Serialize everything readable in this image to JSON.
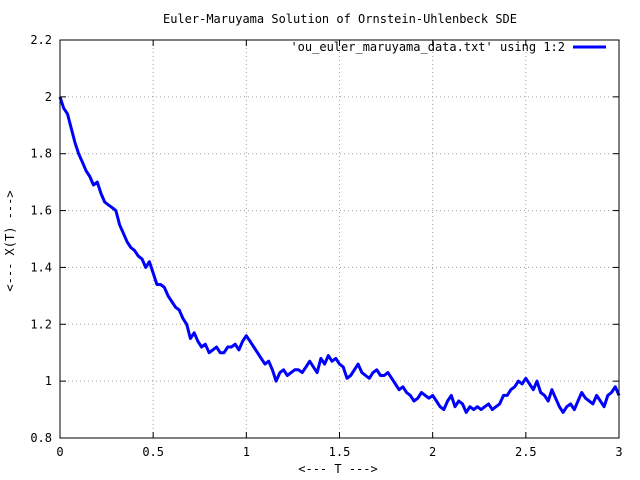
{
  "chart_data": {
    "type": "line",
    "title": "Euler-Maruyama Solution of Ornstein-Uhlenbeck SDE",
    "xlabel": "<--- T --->",
    "ylabel": "<--- X(T) --->",
    "xlim": [
      0,
      3
    ],
    "ylim": [
      0.8,
      2.2
    ],
    "xticks": [
      0,
      0.5,
      1,
      1.5,
      2,
      2.5,
      3
    ],
    "xtick_labels": [
      "0",
      "0.5",
      "1",
      "1.5",
      "2",
      "2.5",
      "3"
    ],
    "yticks": [
      0.8,
      1,
      1.2,
      1.4,
      1.6,
      1.8,
      2,
      2.2
    ],
    "ytick_labels": [
      "0.8",
      "1",
      "1.2",
      "1.4",
      "1.6",
      "1.8",
      "2",
      "2.2"
    ],
    "grid": true,
    "legend_position": "top-right",
    "series": [
      {
        "name": "'ou_euler_maruyama_data.txt' using 1:2",
        "color": "#0000ff",
        "x": [
          0,
          0.02,
          0.04,
          0.06,
          0.08,
          0.1,
          0.12,
          0.14,
          0.16,
          0.18,
          0.2,
          0.22,
          0.24,
          0.26,
          0.28,
          0.3,
          0.32,
          0.34,
          0.36,
          0.38,
          0.4,
          0.42,
          0.44,
          0.46,
          0.48,
          0.5,
          0.52,
          0.54,
          0.56,
          0.58,
          0.6,
          0.62,
          0.64,
          0.66,
          0.68,
          0.7,
          0.72,
          0.74,
          0.76,
          0.78,
          0.8,
          0.82,
          0.84,
          0.86,
          0.88,
          0.9,
          0.92,
          0.94,
          0.96,
          0.98,
          1.0,
          1.02,
          1.04,
          1.06,
          1.08,
          1.1,
          1.12,
          1.14,
          1.16,
          1.18,
          1.2,
          1.22,
          1.24,
          1.26,
          1.28,
          1.3,
          1.32,
          1.34,
          1.36,
          1.38,
          1.4,
          1.42,
          1.44,
          1.46,
          1.48,
          1.5,
          1.52,
          1.54,
          1.56,
          1.58,
          1.6,
          1.62,
          1.64,
          1.66,
          1.68,
          1.7,
          1.72,
          1.74,
          1.76,
          1.78,
          1.8,
          1.82,
          1.84,
          1.86,
          1.88,
          1.9,
          1.92,
          1.94,
          1.96,
          1.98,
          2.0,
          2.02,
          2.04,
          2.06,
          2.08,
          2.1,
          2.12,
          2.14,
          2.16,
          2.18,
          2.2,
          2.22,
          2.24,
          2.26,
          2.28,
          2.3,
          2.32,
          2.34,
          2.36,
          2.38,
          2.4,
          2.42,
          2.44,
          2.46,
          2.48,
          2.5,
          2.52,
          2.54,
          2.56,
          2.58,
          2.6,
          2.62,
          2.64,
          2.66,
          2.68,
          2.7,
          2.72,
          2.74,
          2.76,
          2.78,
          2.8,
          2.82,
          2.84,
          2.86,
          2.88,
          2.9,
          2.92,
          2.94,
          2.96,
          2.98,
          3.0
        ],
        "y": [
          2.0,
          1.96,
          1.94,
          1.89,
          1.84,
          1.8,
          1.77,
          1.74,
          1.72,
          1.69,
          1.7,
          1.66,
          1.63,
          1.62,
          1.61,
          1.6,
          1.55,
          1.52,
          1.49,
          1.47,
          1.46,
          1.44,
          1.43,
          1.4,
          1.42,
          1.38,
          1.34,
          1.34,
          1.33,
          1.3,
          1.28,
          1.26,
          1.25,
          1.22,
          1.2,
          1.15,
          1.17,
          1.14,
          1.12,
          1.13,
          1.1,
          1.11,
          1.12,
          1.1,
          1.1,
          1.12,
          1.12,
          1.13,
          1.11,
          1.14,
          1.16,
          1.14,
          1.12,
          1.1,
          1.08,
          1.06,
          1.07,
          1.04,
          1.0,
          1.03,
          1.04,
          1.02,
          1.03,
          1.04,
          1.04,
          1.03,
          1.05,
          1.07,
          1.05,
          1.03,
          1.08,
          1.06,
          1.09,
          1.07,
          1.08,
          1.06,
          1.05,
          1.01,
          1.02,
          1.04,
          1.06,
          1.03,
          1.02,
          1.01,
          1.03,
          1.04,
          1.02,
          1.02,
          1.03,
          1.01,
          0.99,
          0.97,
          0.98,
          0.96,
          0.95,
          0.93,
          0.94,
          0.96,
          0.95,
          0.94,
          0.95,
          0.93,
          0.91,
          0.9,
          0.93,
          0.95,
          0.91,
          0.93,
          0.92,
          0.89,
          0.91,
          0.9,
          0.91,
          0.9,
          0.91,
          0.92,
          0.9,
          0.91,
          0.92,
          0.95,
          0.95,
          0.97,
          0.98,
          1.0,
          0.99,
          1.01,
          0.99,
          0.97,
          1.0,
          0.96,
          0.95,
          0.93,
          0.97,
          0.94,
          0.91,
          0.89,
          0.91,
          0.92,
          0.9,
          0.93,
          0.96,
          0.94,
          0.93,
          0.92,
          0.95,
          0.93,
          0.91,
          0.95,
          0.96,
          0.98,
          0.95
        ]
      }
    ]
  }
}
